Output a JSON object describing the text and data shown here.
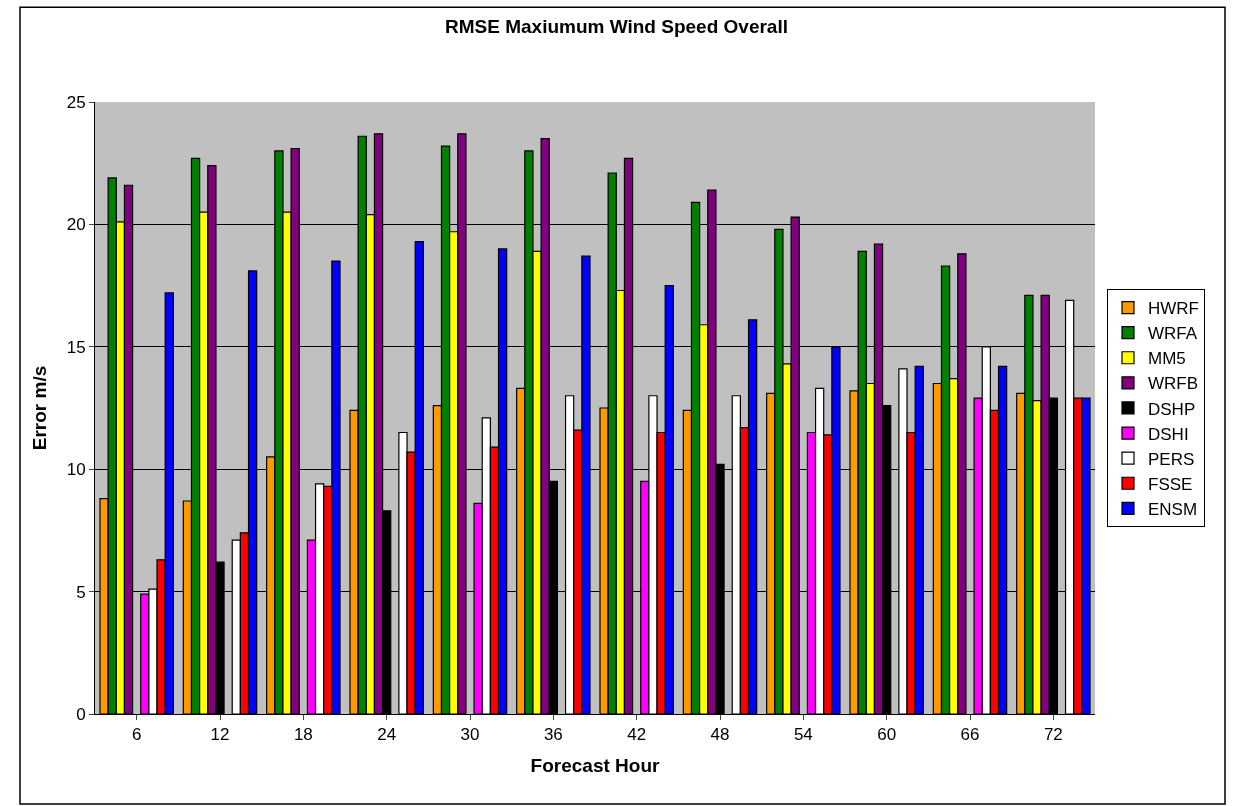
{
  "chart_data": {
    "type": "bar",
    "title": "RMSE Maxiumum Wind Speed Overall",
    "xlabel": "Forecast Hour",
    "ylabel": "Error m/s",
    "categories": [
      "6",
      "12",
      "18",
      "24",
      "30",
      "36",
      "42",
      "48",
      "54",
      "60",
      "66",
      "72"
    ],
    "series": [
      {
        "name": "HWRF",
        "color": "#ff9900",
        "values": [
          8.8,
          8.7,
          10.5,
          12.4,
          12.6,
          13.3,
          12.5,
          12.4,
          13.1,
          13.2,
          13.5,
          13.1
        ]
      },
      {
        "name": "WRFA",
        "color": "#008000",
        "values": [
          21.9,
          22.7,
          23.0,
          23.6,
          23.2,
          23.0,
          22.1,
          20.9,
          19.8,
          18.9,
          18.3,
          17.1
        ]
      },
      {
        "name": "MM5",
        "color": "#ffff00",
        "values": [
          20.1,
          20.5,
          20.5,
          20.4,
          19.7,
          18.9,
          17.3,
          15.9,
          14.3,
          13.5,
          13.7,
          12.8
        ]
      },
      {
        "name": "WRFB",
        "color": "#800080",
        "values": [
          21.6,
          22.4,
          23.1,
          23.7,
          23.7,
          23.5,
          22.7,
          21.4,
          20.3,
          19.2,
          18.8,
          17.1
        ]
      },
      {
        "name": "DSHP",
        "color": "#000000",
        "values": [
          null,
          6.2,
          null,
          8.3,
          null,
          9.5,
          null,
          10.2,
          null,
          12.6,
          null,
          12.9
        ]
      },
      {
        "name": "DSHI",
        "color": "#ff00ff",
        "values": [
          4.9,
          null,
          7.1,
          null,
          8.6,
          null,
          9.5,
          null,
          11.5,
          null,
          12.9,
          null
        ]
      },
      {
        "name": "PERS",
        "color": "#ffffff",
        "values": [
          5.1,
          7.1,
          9.4,
          11.5,
          12.1,
          13.0,
          13.0,
          13.0,
          13.3,
          14.1,
          15.0,
          16.9
        ]
      },
      {
        "name": "FSSE",
        "color": "#ff0000",
        "values": [
          6.3,
          7.4,
          9.3,
          10.7,
          10.9,
          11.6,
          11.5,
          11.7,
          11.4,
          11.5,
          12.4,
          12.9
        ]
      },
      {
        "name": "ENSM",
        "color": "#0000ff",
        "values": [
          17.2,
          18.1,
          18.5,
          19.3,
          19.0,
          18.7,
          17.5,
          16.1,
          15.0,
          14.2,
          14.2,
          12.9
        ]
      }
    ],
    "ylim": [
      0,
      25
    ],
    "yticks": [
      0,
      5,
      10,
      15,
      20,
      25
    ],
    "grid": "y",
    "legend": "right"
  }
}
